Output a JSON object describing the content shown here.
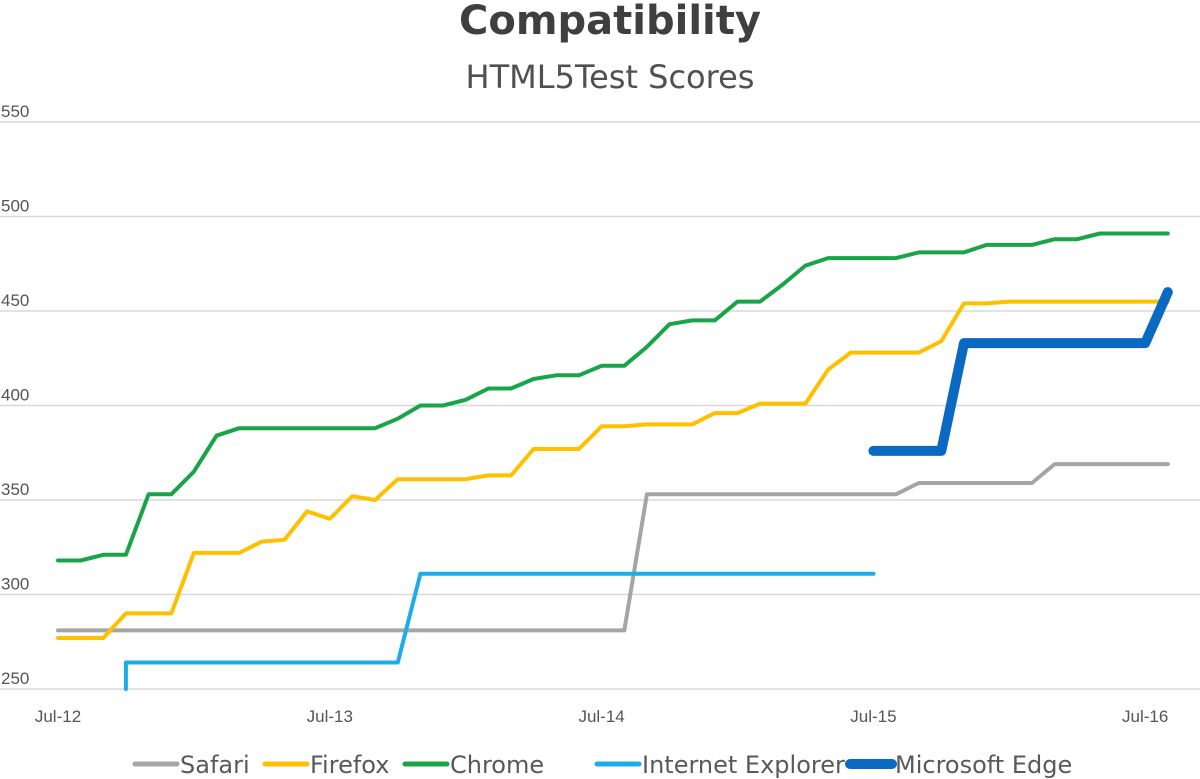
{
  "chart_data": {
    "type": "line",
    "title": "Compatibility",
    "subtitle": "HTML5Test Scores",
    "xlabel": "",
    "ylabel": "",
    "x_ticks": [
      "Jul-12",
      "Jul-13",
      "Jul-14",
      "Jul-15",
      "Jul-16"
    ],
    "xlim": [
      "2012-07",
      "2016-08"
    ],
    "y_ticks": [
      250,
      300,
      350,
      400,
      450,
      500,
      550
    ],
    "ylim": [
      250,
      550
    ],
    "grid": true,
    "legend_position": "bottom",
    "series": [
      {
        "name": "Safari",
        "color": "#a5a5a5",
        "points": [
          [
            "2012-07",
            281
          ],
          [
            "2014-08",
            281
          ],
          [
            "2014-09",
            353
          ],
          [
            "2015-08",
            353
          ],
          [
            "2015-09",
            359
          ],
          [
            "2016-02",
            359
          ],
          [
            "2016-03",
            369
          ],
          [
            "2016-08",
            369
          ]
        ]
      },
      {
        "name": "Firefox",
        "color": "#ffc000",
        "points": [
          [
            "2012-07",
            277
          ],
          [
            "2012-09",
            277
          ],
          [
            "2012-10",
            290
          ],
          [
            "2012-12",
            290
          ],
          [
            "2013-01",
            322
          ],
          [
            "2013-02",
            322
          ],
          [
            "2013-03",
            322
          ],
          [
            "2013-04",
            328
          ],
          [
            "2013-05",
            329
          ],
          [
            "2013-06",
            344
          ],
          [
            "2013-07",
            340
          ],
          [
            "2013-08",
            352
          ],
          [
            "2013-09",
            350
          ],
          [
            "2013-10",
            361
          ],
          [
            "2013-11",
            361
          ],
          [
            "2014-01",
            361
          ],
          [
            "2014-02",
            363
          ],
          [
            "2014-03",
            363
          ],
          [
            "2014-04",
            377
          ],
          [
            "2014-05",
            377
          ],
          [
            "2014-06",
            377
          ],
          [
            "2014-07",
            389
          ],
          [
            "2014-08",
            389
          ],
          [
            "2014-09",
            390
          ],
          [
            "2014-11",
            390
          ],
          [
            "2014-12",
            396
          ],
          [
            "2015-01",
            396
          ],
          [
            "2015-02",
            401
          ],
          [
            "2015-04",
            401
          ],
          [
            "2015-05",
            419
          ],
          [
            "2015-06",
            428
          ],
          [
            "2015-09",
            428
          ],
          [
            "2015-10",
            434
          ],
          [
            "2015-11",
            454
          ],
          [
            "2015-12",
            454
          ],
          [
            "2016-01",
            455
          ],
          [
            "2016-08",
            455
          ]
        ]
      },
      {
        "name": "Chrome",
        "color": "#19a547",
        "points": [
          [
            "2012-07",
            318
          ],
          [
            "2012-08",
            318
          ],
          [
            "2012-09",
            321
          ],
          [
            "2012-10",
            321
          ],
          [
            "2012-11",
            353
          ],
          [
            "2012-12",
            353
          ],
          [
            "2013-01",
            365
          ],
          [
            "2013-02",
            384
          ],
          [
            "2013-03",
            388
          ],
          [
            "2013-09",
            388
          ],
          [
            "2013-10",
            393
          ],
          [
            "2013-11",
            400
          ],
          [
            "2013-12",
            400
          ],
          [
            "2014-01",
            403
          ],
          [
            "2014-02",
            409
          ],
          [
            "2014-03",
            409
          ],
          [
            "2014-04",
            414
          ],
          [
            "2014-05",
            416
          ],
          [
            "2014-06",
            416
          ],
          [
            "2014-07",
            421
          ],
          [
            "2014-08",
            421
          ],
          [
            "2014-09",
            431
          ],
          [
            "2014-10",
            443
          ],
          [
            "2014-11",
            445
          ],
          [
            "2014-12",
            445
          ],
          [
            "2015-01",
            455
          ],
          [
            "2015-02",
            455
          ],
          [
            "2015-03",
            464
          ],
          [
            "2015-04",
            474
          ],
          [
            "2015-05",
            478
          ],
          [
            "2015-08",
            478
          ],
          [
            "2015-09",
            481
          ],
          [
            "2015-11",
            481
          ],
          [
            "2015-12",
            485
          ],
          [
            "2016-02",
            485
          ],
          [
            "2016-03",
            488
          ],
          [
            "2016-04",
            488
          ],
          [
            "2016-05",
            491
          ],
          [
            "2016-08",
            491
          ]
        ]
      },
      {
        "name": "Internet Explorer",
        "color": "#1cace8",
        "points": [
          [
            "2012-10",
            250
          ],
          [
            "2012-10",
            264
          ],
          [
            "2013-10",
            264
          ],
          [
            "2013-11",
            311
          ],
          [
            "2015-07",
            311
          ]
        ]
      },
      {
        "name": "Microsoft Edge",
        "color": "#0a6ac1",
        "points": [
          [
            "2015-07",
            376
          ],
          [
            "2015-10",
            376
          ],
          [
            "2015-11",
            433
          ],
          [
            "2016-07",
            433
          ],
          [
            "2016-08",
            460
          ]
        ]
      }
    ]
  }
}
